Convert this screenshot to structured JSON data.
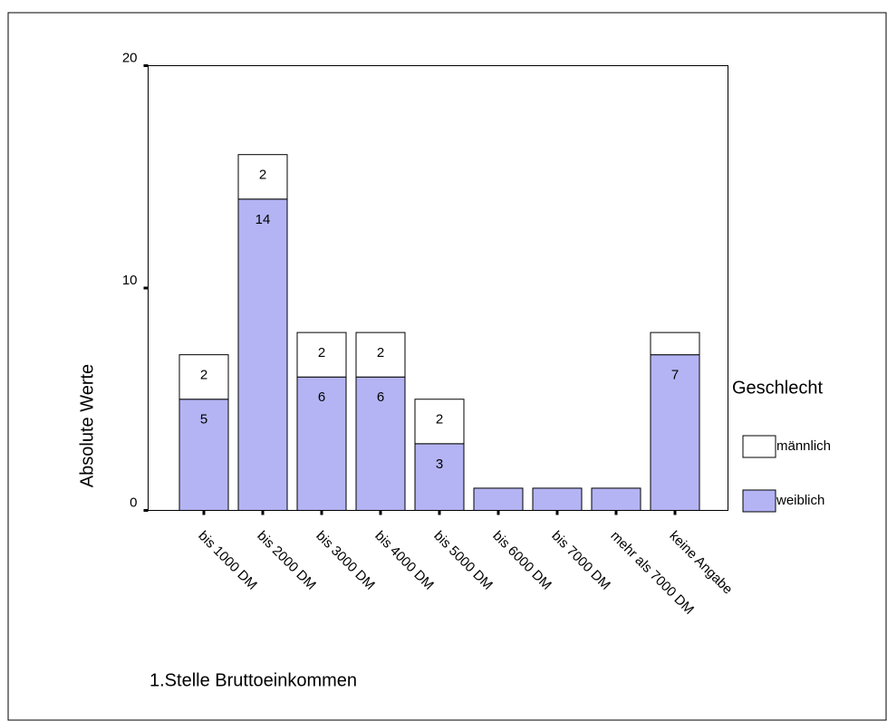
{
  "chart_data": {
    "type": "stacked_bar",
    "y_label": "Absolute Werte",
    "x_label": "1.Stelle Bruttoeinkommen",
    "legend_title": "Geschlecht",
    "categories": [
      "bis 1000 DM",
      "bis 2000 DM",
      "bis 3000 DM",
      "bis 4000 DM",
      "bis 5000 DM",
      "bis 6000 DM",
      "bis 7000 DM",
      "mehr als 7000 DM",
      "keine Angabe"
    ],
    "series": [
      {
        "name": "weiblich",
        "color": "#b4b4f4",
        "values": [
          5,
          14,
          6,
          6,
          3,
          1,
          1,
          1,
          7
        ]
      },
      {
        "name": "männlich",
        "color": "#ffffff",
        "values": [
          2,
          2,
          2,
          2,
          2,
          0,
          0,
          0,
          1
        ]
      }
    ],
    "ylim": [
      0,
      20
    ],
    "yticks": [
      0,
      10,
      20
    ],
    "legend": "right"
  }
}
